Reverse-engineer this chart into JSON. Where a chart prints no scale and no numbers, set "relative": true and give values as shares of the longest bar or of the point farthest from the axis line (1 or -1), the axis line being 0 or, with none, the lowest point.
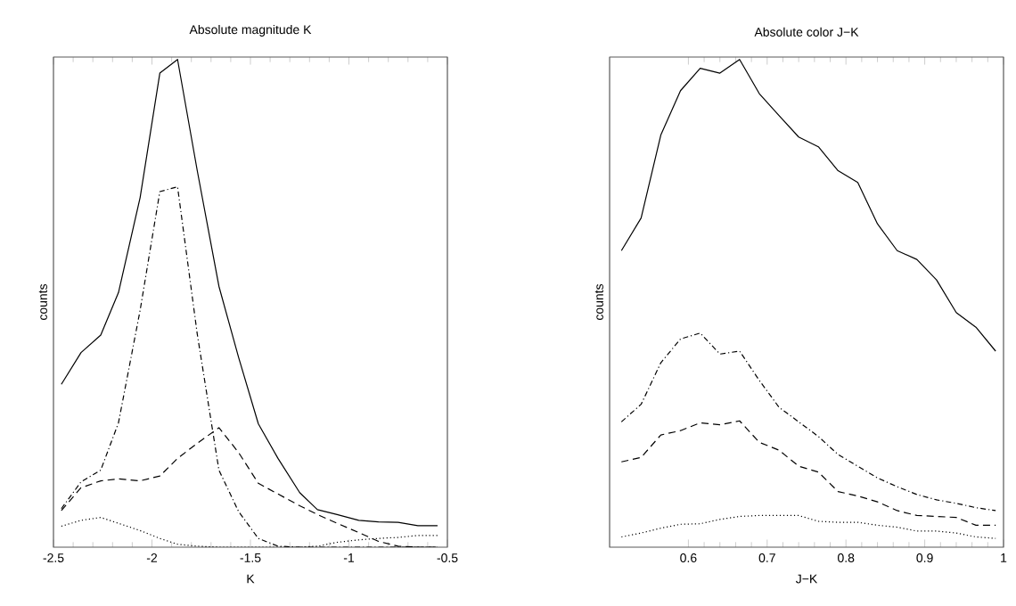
{
  "chart_data": [
    {
      "type": "line",
      "title": "Absolute magnitude K",
      "xlabel": "K",
      "ylabel": "counts",
      "relative": true,
      "xlim": [
        -2.5,
        -0.5
      ],
      "xticks": [
        -2.5,
        -2,
        -1.5,
        -1,
        -0.5
      ],
      "x": [
        -2.46,
        -2.36,
        -2.26,
        -2.17,
        -2.06,
        -1.96,
        -1.87,
        -1.77,
        -1.66,
        -1.56,
        -1.46,
        -1.36,
        -1.25,
        -1.16,
        -1.06,
        -0.95,
        -0.85,
        -0.75,
        -0.65,
        -0.55
      ],
      "series": [
        {
          "color": "#000000",
          "line_style": "solid",
          "values": [
            0.334,
            0.399,
            0.435,
            0.522,
            0.717,
            0.972,
            1.0,
            0.772,
            0.535,
            0.389,
            0.253,
            0.182,
            0.112,
            0.077,
            0.067,
            0.055,
            0.052,
            0.051,
            0.044,
            0.044
          ]
        },
        {
          "color": "#000000",
          "line_style": "dashdot",
          "values": [
            0.079,
            0.134,
            0.158,
            0.255,
            0.486,
            0.729,
            0.739,
            0.437,
            0.158,
            0.073,
            0.018,
            0.002,
            0,
            0,
            0,
            0,
            0,
            0,
            0,
            0
          ]
        },
        {
          "color": "#000000",
          "line_style": "dashed",
          "values": [
            0.075,
            0.122,
            0.136,
            0.14,
            0.136,
            0.146,
            0.182,
            0.213,
            0.245,
            0.194,
            0.131,
            0.109,
            0.085,
            0.067,
            0.049,
            0.03,
            0.012,
            0.002,
            0,
            0
          ]
        },
        {
          "color": "#000000",
          "line_style": "dotted",
          "values": [
            0.043,
            0.055,
            0.061,
            0.049,
            0.034,
            0.018,
            0.006,
            0.002,
            0,
            0,
            0,
            0,
            0,
            0.002,
            0.01,
            0.015,
            0.018,
            0.02,
            0.024,
            0.024
          ]
        }
      ]
    },
    {
      "type": "line",
      "title": "Absolute color J−K",
      "xlabel": "J−K",
      "ylabel": "counts",
      "relative": true,
      "xlim": [
        0.5,
        1
      ],
      "xticks": [
        0.6,
        0.7,
        0.8,
        0.9,
        1
      ],
      "x": [
        0.515,
        0.54,
        0.565,
        0.59,
        0.615,
        0.64,
        0.665,
        0.69,
        0.715,
        0.74,
        0.765,
        0.79,
        0.815,
        0.84,
        0.865,
        0.89,
        0.915,
        0.94,
        0.965,
        0.99
      ],
      "series": [
        {
          "color": "#000000",
          "line_style": "solid",
          "values": [
            0.608,
            0.675,
            0.845,
            0.936,
            0.982,
            0.972,
            1.0,
            0.93,
            0.885,
            0.841,
            0.821,
            0.772,
            0.748,
            0.663,
            0.608,
            0.59,
            0.548,
            0.481,
            0.451,
            0.402
          ]
        },
        {
          "color": "#000000",
          "line_style": "dashdot",
          "values": [
            0.257,
            0.293,
            0.378,
            0.427,
            0.439,
            0.396,
            0.402,
            0.342,
            0.287,
            0.257,
            0.227,
            0.19,
            0.166,
            0.142,
            0.124,
            0.108,
            0.097,
            0.09,
            0.081,
            0.075
          ]
        },
        {
          "color": "#000000",
          "line_style": "dashed",
          "values": [
            0.175,
            0.184,
            0.23,
            0.239,
            0.255,
            0.251,
            0.259,
            0.215,
            0.199,
            0.166,
            0.154,
            0.114,
            0.105,
            0.093,
            0.075,
            0.065,
            0.063,
            0.061,
            0.045,
            0.045
          ]
        },
        {
          "color": "#000000",
          "line_style": "dotted",
          "values": [
            0.021,
            0.029,
            0.039,
            0.047,
            0.048,
            0.057,
            0.063,
            0.065,
            0.065,
            0.065,
            0.053,
            0.051,
            0.051,
            0.045,
            0.041,
            0.033,
            0.033,
            0.029,
            0.021,
            0.018
          ]
        }
      ]
    }
  ]
}
